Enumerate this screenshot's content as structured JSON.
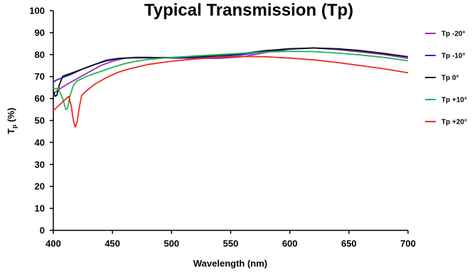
{
  "chart_data": {
    "type": "line",
    "title": "Typical Transmission (Tp)",
    "xlabel": "Wavelength (nm)",
    "ylabel": "Tp (%)",
    "xlim": [
      400,
      700
    ],
    "ylim": [
      0,
      100
    ],
    "xticks": [
      400,
      450,
      500,
      550,
      600,
      650,
      700
    ],
    "yticks": [
      0,
      10,
      20,
      30,
      40,
      50,
      60,
      70,
      80,
      90,
      100
    ],
    "grid": false,
    "legend_position": "right",
    "series": [
      {
        "name": "Tp -20°",
        "color": "#9b30b0",
        "points": [
          [
            400,
            62
          ],
          [
            403,
            63.5
          ],
          [
            410,
            66
          ],
          [
            420,
            69
          ],
          [
            430,
            72
          ],
          [
            440,
            75
          ],
          [
            450,
            77
          ],
          [
            460,
            78.3
          ],
          [
            470,
            78.8
          ],
          [
            480,
            78.8
          ],
          [
            490,
            78.5
          ],
          [
            500,
            78.4
          ],
          [
            520,
            78.3
          ],
          [
            540,
            78.3
          ],
          [
            560,
            79
          ],
          [
            580,
            81
          ],
          [
            600,
            82.5
          ],
          [
            620,
            83
          ],
          [
            640,
            82.3
          ],
          [
            660,
            81.2
          ],
          [
            680,
            80
          ],
          [
            700,
            78.3
          ]
        ]
      },
      {
        "name": "Tp -10°",
        "color": "#1a2fe0",
        "points": [
          [
            400,
            67.5
          ],
          [
            403,
            68.5
          ],
          [
            408,
            69.5
          ],
          [
            415,
            71
          ],
          [
            425,
            73.5
          ],
          [
            435,
            75.5
          ],
          [
            445,
            77.5
          ],
          [
            455,
            78.3
          ],
          [
            465,
            78.6
          ],
          [
            480,
            78.6
          ],
          [
            500,
            78.5
          ],
          [
            520,
            78.6
          ],
          [
            540,
            79
          ],
          [
            560,
            80
          ],
          [
            580,
            81.5
          ],
          [
            600,
            82.5
          ],
          [
            620,
            83
          ],
          [
            640,
            82.6
          ],
          [
            660,
            81.7
          ],
          [
            680,
            80.5
          ],
          [
            700,
            79
          ]
        ]
      },
      {
        "name": "Tp 0°",
        "color": "#111111",
        "points": [
          [
            400,
            63.5
          ],
          [
            401.5,
            61
          ],
          [
            403,
            61.5
          ],
          [
            405,
            66
          ],
          [
            408,
            70.2
          ],
          [
            415,
            71.5
          ],
          [
            425,
            73.5
          ],
          [
            435,
            75.5
          ],
          [
            445,
            77.2
          ],
          [
            455,
            78.2
          ],
          [
            465,
            78.5
          ],
          [
            480,
            78.5
          ],
          [
            500,
            78.7
          ],
          [
            520,
            79
          ],
          [
            540,
            79.6
          ],
          [
            560,
            80.5
          ],
          [
            580,
            81.8
          ],
          [
            600,
            82.7
          ],
          [
            620,
            83
          ],
          [
            640,
            82.7
          ],
          [
            660,
            81.8
          ],
          [
            680,
            80.5
          ],
          [
            700,
            79
          ]
        ]
      },
      {
        "name": "Tp +10°",
        "color": "#22b35a",
        "points": [
          [
            400,
            64.5
          ],
          [
            404,
            64.5
          ],
          [
            408,
            60
          ],
          [
            410.5,
            55
          ],
          [
            412,
            55.5
          ],
          [
            414,
            61
          ],
          [
            417,
            66
          ],
          [
            420,
            68
          ],
          [
            430,
            70.5
          ],
          [
            440,
            72.3
          ],
          [
            450,
            74.2
          ],
          [
            460,
            75.8
          ],
          [
            470,
            77
          ],
          [
            480,
            77.8
          ],
          [
            500,
            78.7
          ],
          [
            520,
            79.4
          ],
          [
            540,
            80
          ],
          [
            560,
            80.6
          ],
          [
            580,
            81.2
          ],
          [
            600,
            81.5
          ],
          [
            620,
            81.4
          ],
          [
            640,
            80.7
          ],
          [
            660,
            79.8
          ],
          [
            680,
            78.7
          ],
          [
            700,
            77.2
          ]
        ]
      },
      {
        "name": "Tp +20°",
        "color": "#ee2a22",
        "points": [
          [
            400,
            54.5
          ],
          [
            405,
            57
          ],
          [
            410,
            59.5
          ],
          [
            413,
            61
          ],
          [
            415,
            57
          ],
          [
            417,
            50
          ],
          [
            418.5,
            47
          ],
          [
            420,
            49
          ],
          [
            422,
            56
          ],
          [
            424,
            61.5
          ],
          [
            428,
            63.5
          ],
          [
            435,
            66.5
          ],
          [
            445,
            69.5
          ],
          [
            455,
            72
          ],
          [
            465,
            73.6
          ],
          [
            480,
            75.5
          ],
          [
            500,
            77
          ],
          [
            520,
            78
          ],
          [
            540,
            78.8
          ],
          [
            560,
            79.2
          ],
          [
            580,
            79
          ],
          [
            600,
            78.4
          ],
          [
            620,
            77.6
          ],
          [
            640,
            76.4
          ],
          [
            660,
            75
          ],
          [
            680,
            73.5
          ],
          [
            700,
            71.7
          ]
        ]
      }
    ]
  }
}
